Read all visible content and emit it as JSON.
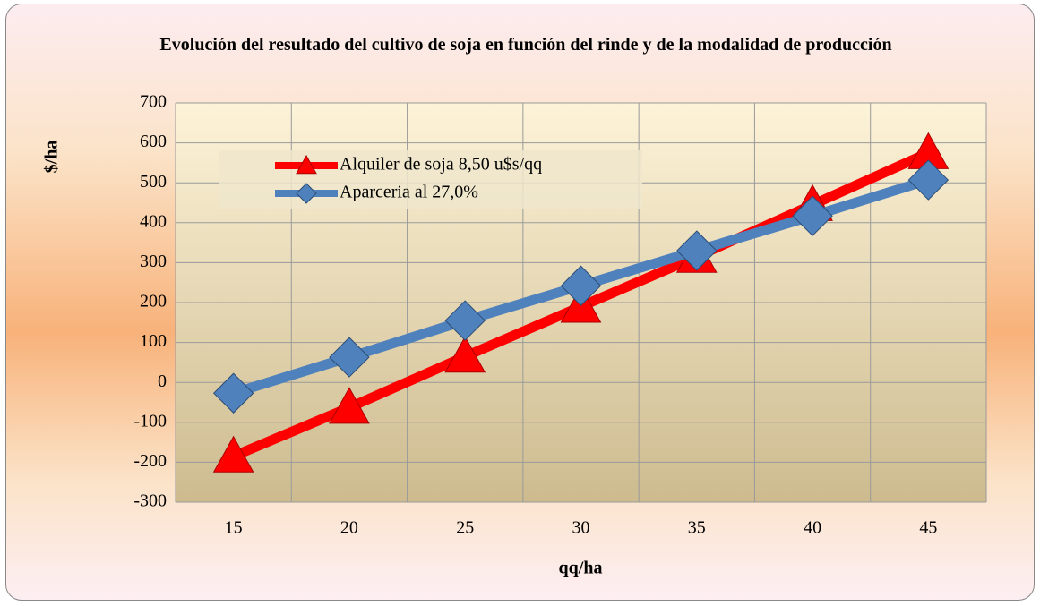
{
  "chart_data": {
    "type": "line",
    "title": "Evolución del resultado del cultivo de soja en función del rinde y de la modalidad de producción",
    "x_label": "qq/ha",
    "y_label": "$/ha",
    "categories": [
      "15",
      "20",
      "25",
      "30",
      "35",
      "40",
      "45"
    ],
    "series": [
      {
        "name": "Alquiler de soja 8,50 u$s/qq",
        "color": "#ff0000",
        "marker": "triangle",
        "values": [
          -185,
          -63,
          65,
          190,
          315,
          445,
          575
        ]
      },
      {
        "name": "Aparceria al 27,0%",
        "color": "#4f81bd",
        "marker": "diamond",
        "values": [
          -27,
          63,
          155,
          242,
          330,
          417,
          507
        ]
      }
    ],
    "ylim": [
      -300,
      700
    ],
    "yticks": [
      -300,
      -200,
      -100,
      0,
      100,
      200,
      300,
      400,
      500,
      600,
      700
    ],
    "grid": true
  }
}
